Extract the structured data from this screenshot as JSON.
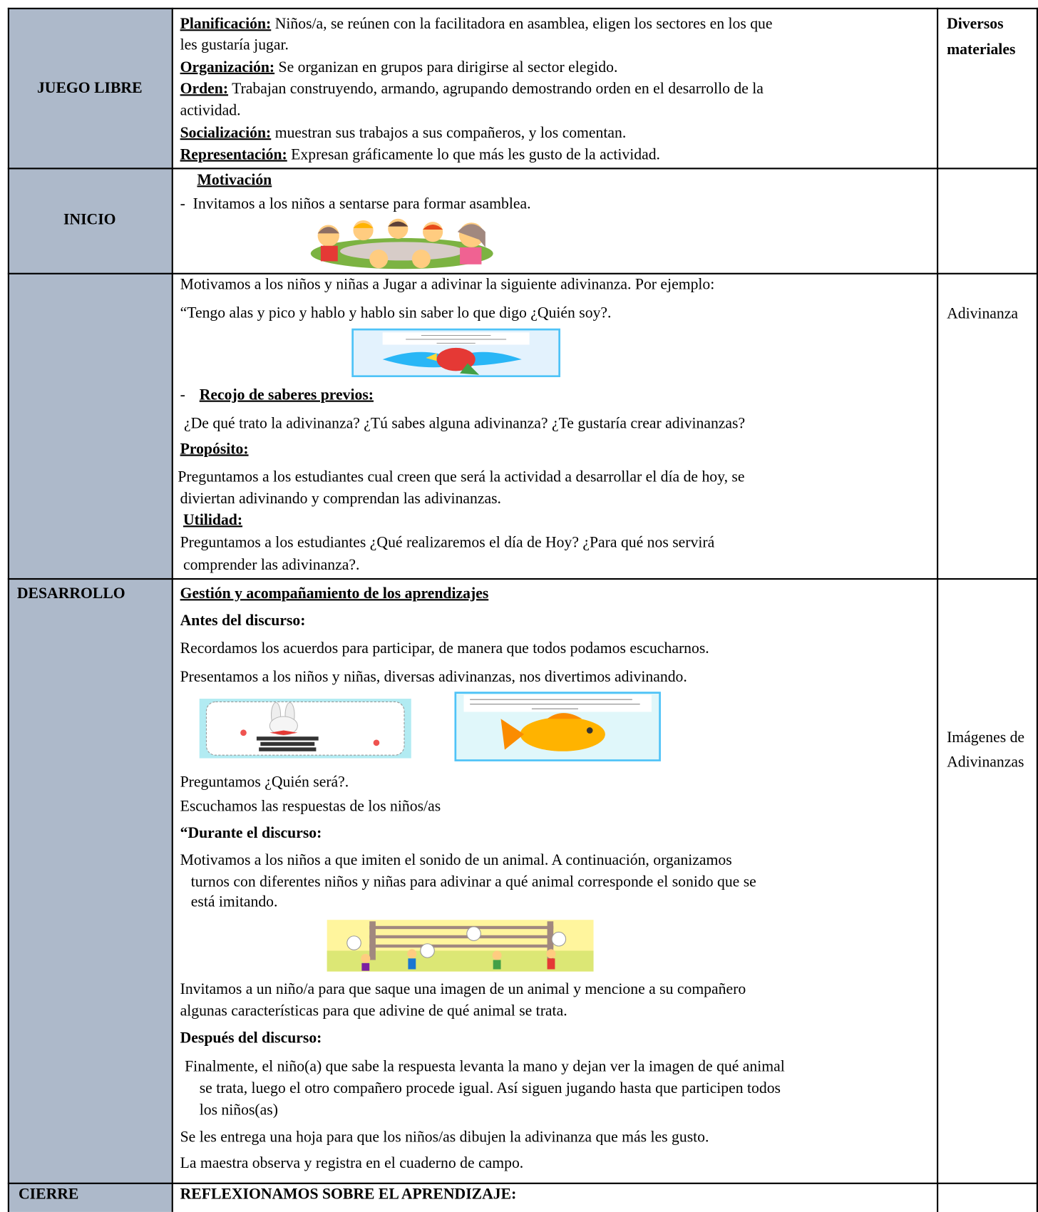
{
  "rows": [
    {
      "stage": "JUEGO LIBRE",
      "materials": "Diversos materiales",
      "lines": [
        {
          "label": "Planificación:",
          "text": " Niños/a, se reúnen con la facilitadora en asamblea, eligen los sectores en los que"
        },
        {
          "text": "les gustaría jugar."
        },
        {
          "label": "Organización:",
          "text": " Se organizan en grupos para dirigirse al sector elegido."
        },
        {
          "label": "Orden:",
          "text": " Trabajan construyendo, armando, agrupando demostrando orden en el desarrollo de la"
        },
        {
          "text": "actividad."
        },
        {
          "label": "Socialización:",
          "text": " muestran sus trabajos a sus compañeros, y los comentan."
        },
        {
          "label": "Representación:",
          "text": " Expresan gráficamente lo que más les gusto de la actividad."
        }
      ]
    },
    {
      "stage": "INICIO",
      "lines": [
        {
          "label": "Motivación"
        },
        {
          "text": "-  Invitamos a los niños a sentarse para formar asamblea."
        }
      ]
    },
    {
      "materials": "Adivinanza",
      "lines": [
        {
          "text": "Motivamos a los niños y niñas a Jugar a adivinar la siguiente adivinanza. Por ejemplo:"
        },
        {
          "text": "“Tengo alas y pico y hablo y hablo sin saber lo que digo ¿Quién soy?."
        },
        {
          "text": "-"
        },
        {
          "label": "Recojo de saberes previos:"
        },
        {
          "text": "¿De qué trato la adivinanza? ¿Tú sabes alguna adivinanza? ¿Te gustaría crear adivinanzas?"
        },
        {
          "label": "Propósito:"
        },
        {
          "text": "Preguntamos a los estudiantes cual creen que será la actividad a desarrollar el día de hoy, se"
        },
        {
          "text": "diviertan adivinando y comprendan las adivinanzas."
        },
        {
          "label": "Utilidad:"
        },
        {
          "text": "Preguntamos a los estudiantes ¿Qué realizaremos el día de Hoy? ¿Para qué nos servirá"
        },
        {
          "text": "comprender las adivinanza?."
        }
      ]
    },
    {
      "stage": "DESARROLLO",
      "materials": "Imágenes de Adivinanzas",
      "lines": [
        {
          "label": "Gestión y acompañamiento de los aprendizajes"
        },
        {
          "bold": "Antes del discurso:"
        },
        {
          "text": "Recordamos los acuerdos para participar, de manera que todos podamos escucharnos."
        },
        {
          "text": "Presentamos a los niños y niñas, diversas adivinanzas, nos divertimos adivinando."
        },
        {
          "text": "Preguntamos ¿Quién será?."
        },
        {
          "text": "Escuchamos las respuestas de los niños/as"
        },
        {
          "bold": "“Durante el discurso:"
        },
        {
          "text": "Motivamos a los niños a que imiten el sonido de un animal. A continuación, organizamos"
        },
        {
          "text": "turnos con diferentes niños y niñas para adivinar a qué animal corresponde el sonido que se"
        },
        {
          "text": "está imitando."
        },
        {
          "text": "Invitamos a un niño/a para que saque una imagen de un animal y mencione a su compañero"
        },
        {
          "text": "algunas características para que adivine de qué animal se trata."
        },
        {
          "bold": "Después del discurso:"
        },
        {
          "text": "Finalmente, el niño(a) que sabe la respuesta levanta la mano y dejan ver la imagen de qué animal"
        },
        {
          "text": "se trata, luego el otro compañero procede igual. Así siguen jugando hasta que participen todos"
        },
        {
          "text": "los niños(as)"
        },
        {
          "text": "Se les entrega una hoja para que los niños/as dibujen la adivinanza que más les gusto."
        },
        {
          "text": "La maestra observa y registra en el cuaderno de campo."
        }
      ]
    },
    {
      "stage": "CIERRE",
      "lines": [
        {
          "bold": "REFLEXIONAMOS SOBRE EL APRENDIZAJE:"
        }
      ]
    }
  ]
}
